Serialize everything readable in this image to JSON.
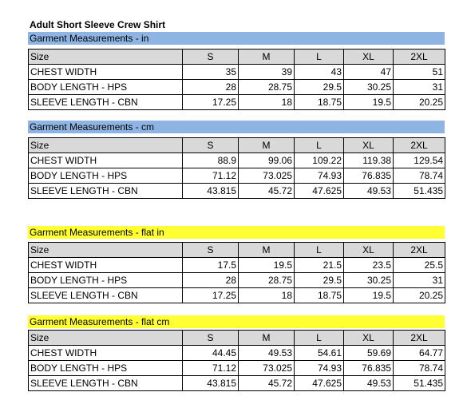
{
  "title": "Adult Short Sleeve Crew Shirt",
  "sections": [
    {
      "heading": "Garment Measurements - in",
      "color": "#8db4e2",
      "columns": [
        "Size",
        "S",
        "M",
        "L",
        "XL",
        "2XL"
      ],
      "rows": [
        {
          "label": "CHEST WIDTH",
          "values": [
            35,
            39,
            43,
            47,
            51
          ]
        },
        {
          "label": "BODY LENGTH - HPS",
          "values": [
            28,
            28.75,
            29.5,
            30.25,
            31
          ]
        },
        {
          "label": "SLEEVE LENGTH - CBN",
          "values": [
            17.25,
            18,
            18.75,
            19.5,
            20.25
          ]
        }
      ]
    },
    {
      "heading": "Garment Measurements - cm",
      "color": "#8db4e2",
      "columns": [
        "Size",
        "S",
        "M",
        "L",
        "XL",
        "2XL"
      ],
      "rows": [
        {
          "label": "CHEST WIDTH",
          "values": [
            88.9,
            99.06,
            109.22,
            119.38,
            129.54
          ]
        },
        {
          "label": "BODY LENGTH - HPS",
          "values": [
            71.12,
            73.025,
            74.93,
            76.835,
            78.74
          ]
        },
        {
          "label": "SLEEVE LENGTH - CBN",
          "values": [
            43.815,
            45.72,
            47.625,
            49.53,
            51.435
          ]
        }
      ]
    },
    {
      "heading": "Garment Measurements - flat in",
      "color": "#ffff33",
      "columns": [
        "Size",
        "S",
        "M",
        "L",
        "XL",
        "2XL"
      ],
      "rows": [
        {
          "label": "CHEST WIDTH",
          "values": [
            17.5,
            19.5,
            21.5,
            23.5,
            25.5
          ]
        },
        {
          "label": "BODY LENGTH - HPS",
          "values": [
            28,
            28.75,
            29.5,
            30.25,
            31
          ]
        },
        {
          "label": "SLEEVE LENGTH - CBN",
          "values": [
            17.25,
            18,
            18.75,
            19.5,
            20.25
          ]
        }
      ]
    },
    {
      "heading": "Garment Measurements - flat cm",
      "color": "#ffff33",
      "columns": [
        "Size",
        "S",
        "M",
        "L",
        "XL",
        "2XL"
      ],
      "rows": [
        {
          "label": "CHEST WIDTH",
          "values": [
            44.45,
            49.53,
            54.61,
            59.69,
            64.77
          ]
        },
        {
          "label": "BODY LENGTH - HPS",
          "values": [
            71.12,
            73.025,
            74.93,
            76.835,
            78.74
          ]
        },
        {
          "label": "SLEEVE LENGTH - CBN",
          "values": [
            43.815,
            45.72,
            47.625,
            49.53,
            51.435
          ]
        }
      ]
    }
  ]
}
